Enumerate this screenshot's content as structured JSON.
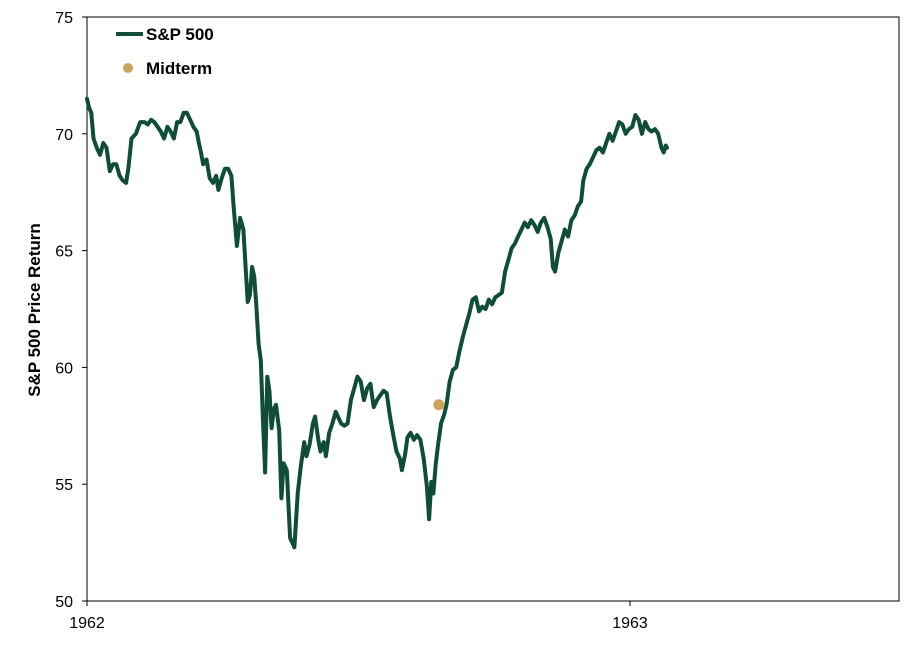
{
  "chart_data": {
    "type": "line",
    "title": "",
    "xlabel": "",
    "ylabel": "S&P 500 Price Return",
    "ylim": [
      50,
      75
    ],
    "yticks": [
      "50",
      "55",
      "60",
      "65",
      "70",
      "75"
    ],
    "xticks": [
      {
        "x": 0,
        "label": "1962"
      },
      {
        "x": 1,
        "label": "1963"
      }
    ],
    "xlim": [
      0,
      1.5
    ],
    "grid": false,
    "legend_position": "top-left",
    "colors": {
      "line": "#0f4d3a",
      "marker": "#c9a555"
    },
    "series": [
      {
        "name": "S&P 500",
        "points": [
          [
            0.0,
            71.5
          ],
          [
            0.004,
            71.1
          ],
          [
            0.008,
            70.9
          ],
          [
            0.012,
            69.8
          ],
          [
            0.018,
            69.4
          ],
          [
            0.024,
            69.1
          ],
          [
            0.03,
            69.6
          ],
          [
            0.036,
            69.4
          ],
          [
            0.042,
            68.4
          ],
          [
            0.048,
            68.7
          ],
          [
            0.054,
            68.7
          ],
          [
            0.06,
            68.2
          ],
          [
            0.066,
            68.0
          ],
          [
            0.072,
            67.9
          ],
          [
            0.076,
            68.5
          ],
          [
            0.082,
            69.8
          ],
          [
            0.09,
            70.0
          ],
          [
            0.098,
            70.5
          ],
          [
            0.106,
            70.5
          ],
          [
            0.112,
            70.4
          ],
          [
            0.118,
            70.6
          ],
          [
            0.124,
            70.5
          ],
          [
            0.13,
            70.3
          ],
          [
            0.136,
            70.1
          ],
          [
            0.142,
            69.8
          ],
          [
            0.148,
            70.3
          ],
          [
            0.154,
            70.1
          ],
          [
            0.16,
            69.8
          ],
          [
            0.166,
            70.5
          ],
          [
            0.172,
            70.5
          ],
          [
            0.178,
            70.9
          ],
          [
            0.184,
            70.9
          ],
          [
            0.19,
            70.6
          ],
          [
            0.196,
            70.3
          ],
          [
            0.202,
            70.1
          ],
          [
            0.206,
            69.6
          ],
          [
            0.21,
            69.2
          ],
          [
            0.214,
            68.7
          ],
          [
            0.22,
            68.9
          ],
          [
            0.226,
            68.1
          ],
          [
            0.232,
            67.9
          ],
          [
            0.238,
            68.2
          ],
          [
            0.242,
            67.6
          ],
          [
            0.248,
            68.1
          ],
          [
            0.254,
            68.5
          ],
          [
            0.26,
            68.5
          ],
          [
            0.266,
            68.2
          ],
          [
            0.27,
            66.9
          ],
          [
            0.276,
            65.2
          ],
          [
            0.282,
            66.4
          ],
          [
            0.288,
            65.9
          ],
          [
            0.292,
            64.3
          ],
          [
            0.296,
            62.8
          ],
          [
            0.3,
            63.1
          ],
          [
            0.304,
            64.3
          ],
          [
            0.308,
            63.9
          ],
          [
            0.312,
            62.6
          ],
          [
            0.316,
            61.0
          ],
          [
            0.32,
            60.3
          ],
          [
            0.324,
            57.8
          ],
          [
            0.328,
            55.5
          ],
          [
            0.332,
            59.6
          ],
          [
            0.336,
            59.0
          ],
          [
            0.34,
            57.4
          ],
          [
            0.344,
            58.2
          ],
          [
            0.348,
            58.4
          ],
          [
            0.354,
            57.3
          ],
          [
            0.358,
            54.4
          ],
          [
            0.362,
            55.9
          ],
          [
            0.368,
            55.6
          ],
          [
            0.374,
            52.7
          ],
          [
            0.378,
            52.5
          ],
          [
            0.382,
            52.3
          ],
          [
            0.388,
            54.6
          ],
          [
            0.394,
            55.8
          ],
          [
            0.4,
            56.8
          ],
          [
            0.404,
            56.2
          ],
          [
            0.41,
            56.7
          ],
          [
            0.416,
            57.6
          ],
          [
            0.42,
            57.9
          ],
          [
            0.426,
            56.9
          ],
          [
            0.43,
            56.4
          ],
          [
            0.436,
            56.8
          ],
          [
            0.44,
            56.2
          ],
          [
            0.446,
            57.2
          ],
          [
            0.452,
            57.6
          ],
          [
            0.458,
            58.1
          ],
          [
            0.462,
            57.9
          ],
          [
            0.468,
            57.6
          ],
          [
            0.474,
            57.5
          ],
          [
            0.48,
            57.6
          ],
          [
            0.486,
            58.6
          ],
          [
            0.492,
            59.1
          ],
          [
            0.498,
            59.6
          ],
          [
            0.504,
            59.4
          ],
          [
            0.51,
            58.6
          ],
          [
            0.516,
            59.1
          ],
          [
            0.522,
            59.3
          ],
          [
            0.528,
            58.3
          ],
          [
            0.534,
            58.6
          ],
          [
            0.54,
            58.8
          ],
          [
            0.546,
            59.0
          ],
          [
            0.552,
            58.9
          ],
          [
            0.558,
            57.9
          ],
          [
            0.564,
            57.1
          ],
          [
            0.57,
            56.4
          ],
          [
            0.576,
            56.1
          ],
          [
            0.58,
            55.6
          ],
          [
            0.586,
            56.3
          ],
          [
            0.59,
            57.0
          ],
          [
            0.596,
            57.2
          ],
          [
            0.602,
            56.9
          ],
          [
            0.608,
            57.1
          ],
          [
            0.614,
            56.9
          ],
          [
            0.62,
            56.1
          ],
          [
            0.626,
            54.9
          ],
          [
            0.63,
            53.5
          ],
          [
            0.634,
            55.1
          ],
          [
            0.638,
            54.6
          ],
          [
            0.642,
            55.8
          ],
          [
            0.646,
            56.6
          ],
          [
            0.652,
            57.6
          ],
          [
            0.658,
            58.0
          ],
          [
            0.662,
            58.4
          ],
          [
            0.668,
            59.4
          ],
          [
            0.674,
            59.9
          ],
          [
            0.68,
            60.0
          ],
          [
            0.686,
            60.7
          ],
          [
            0.692,
            61.3
          ],
          [
            0.698,
            61.8
          ],
          [
            0.704,
            62.3
          ],
          [
            0.71,
            62.9
          ],
          [
            0.716,
            63.0
          ],
          [
            0.722,
            62.4
          ],
          [
            0.728,
            62.6
          ],
          [
            0.734,
            62.5
          ],
          [
            0.74,
            62.9
          ],
          [
            0.746,
            62.7
          ],
          [
            0.752,
            63.0
          ],
          [
            0.758,
            63.1
          ],
          [
            0.764,
            63.2
          ],
          [
            0.77,
            64.1
          ],
          [
            0.776,
            64.6
          ],
          [
            0.782,
            65.1
          ],
          [
            0.788,
            65.3
          ],
          [
            0.794,
            65.6
          ],
          [
            0.8,
            65.9
          ],
          [
            0.806,
            66.2
          ],
          [
            0.812,
            66.0
          ],
          [
            0.818,
            66.3
          ],
          [
            0.824,
            66.1
          ],
          [
            0.83,
            65.8
          ],
          [
            0.836,
            66.2
          ],
          [
            0.842,
            66.4
          ],
          [
            0.848,
            66.0
          ],
          [
            0.854,
            65.5
          ],
          [
            0.858,
            64.3
          ],
          [
            0.862,
            64.1
          ],
          [
            0.868,
            64.9
          ],
          [
            0.874,
            65.4
          ],
          [
            0.88,
            65.9
          ],
          [
            0.886,
            65.6
          ],
          [
            0.892,
            66.3
          ],
          [
            0.898,
            66.5
          ],
          [
            0.904,
            66.9
          ],
          [
            0.91,
            67.1
          ],
          [
            0.914,
            68.0
          ],
          [
            0.92,
            68.5
          ],
          [
            0.926,
            68.7
          ],
          [
            0.932,
            69.0
          ],
          [
            0.938,
            69.3
          ],
          [
            0.944,
            69.4
          ],
          [
            0.95,
            69.2
          ],
          [
            0.956,
            69.6
          ],
          [
            0.962,
            70.0
          ],
          [
            0.968,
            69.7
          ],
          [
            0.974,
            70.1
          ],
          [
            0.98,
            70.5
          ],
          [
            0.986,
            70.4
          ],
          [
            0.992,
            70.0
          ],
          [
            0.998,
            70.2
          ],
          [
            1.004,
            70.3
          ],
          [
            1.01,
            70.8
          ],
          [
            1.016,
            70.6
          ],
          [
            1.022,
            70.0
          ],
          [
            1.028,
            70.5
          ],
          [
            1.034,
            70.2
          ],
          [
            1.04,
            70.1
          ],
          [
            1.046,
            70.2
          ],
          [
            1.052,
            70.0
          ],
          [
            1.058,
            69.4
          ],
          [
            1.062,
            69.2
          ],
          [
            1.066,
            69.5
          ],
          [
            1.068,
            69.4
          ]
        ]
      }
    ],
    "markers": [
      {
        "name": "Midterm",
        "x": 0.648,
        "y": 58.4
      }
    ]
  }
}
